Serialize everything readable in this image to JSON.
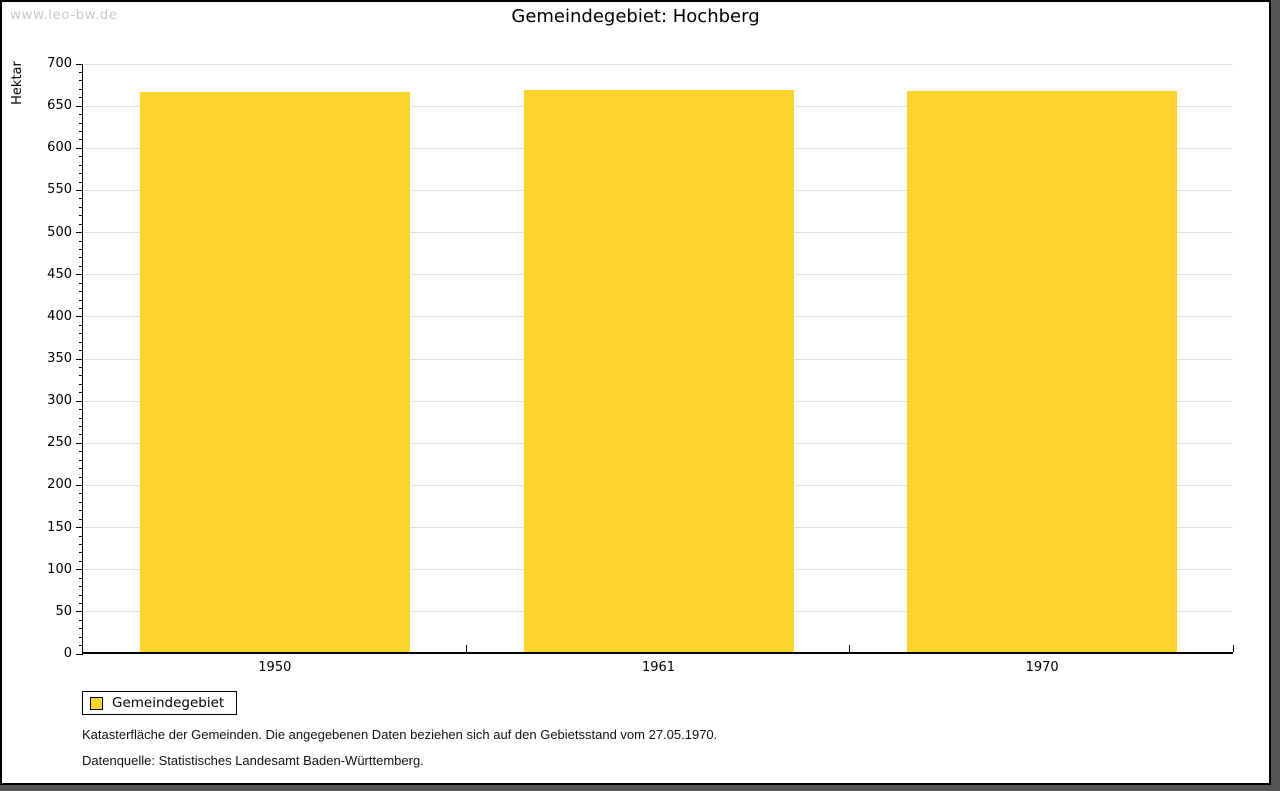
{
  "watermark": "www.leo-bw.de",
  "chart_data": {
    "type": "bar",
    "title": "Gemeindegebiet: Hochberg",
    "xlabel": "",
    "ylabel": "Hektar",
    "categories": [
      "1950",
      "1961",
      "1970"
    ],
    "series": [
      {
        "name": "Gemeindegebiet",
        "values": [
          665,
          667,
          666
        ]
      }
    ],
    "ylim": [
      0,
      700
    ],
    "ytick_major": 50,
    "ytick_minor": 10,
    "grid": true,
    "legend_position": "bottom-left"
  },
  "legend": {
    "label": "Gemeindegebiet"
  },
  "captions": [
    "Katasterfläche der Gemeinden. Die angegebenen Daten beziehen sich auf den Gebietsstand vom 27.05.1970.",
    "Datenquelle: Statistisches Landesamt Baden-Württemberg."
  ],
  "colors": {
    "bar": "#FDD32E",
    "grid": "#E0E0E0",
    "axis": "#000000",
    "watermark": "#C9C9C9",
    "frame_shadow": "#555555",
    "text": "#111111"
  }
}
